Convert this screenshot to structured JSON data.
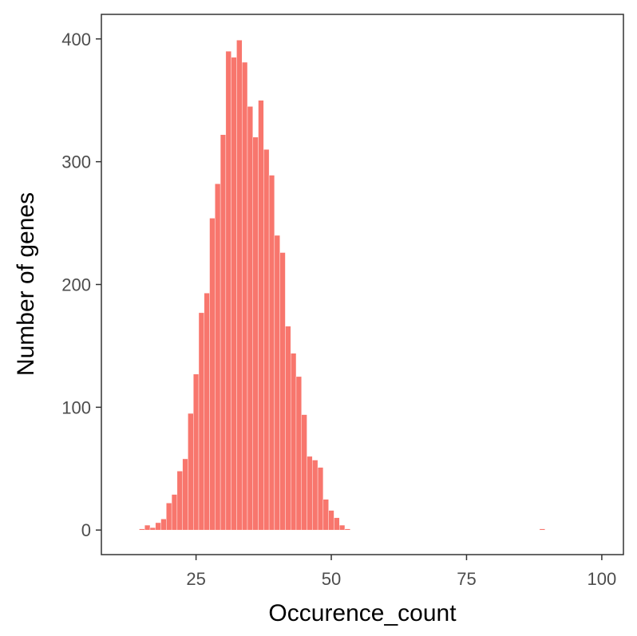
{
  "chart_data": {
    "type": "bar",
    "subtype": "histogram",
    "xlabel": "Occurence_count",
    "ylabel": "Number of genes",
    "xlim": [
      7.5,
      104
    ],
    "ylim": [
      -20,
      420
    ],
    "x_ticks": [
      25,
      50,
      75,
      100
    ],
    "y_ticks": [
      0,
      100,
      200,
      300,
      400
    ],
    "bin_width": 1,
    "bar_color": "#F8766D",
    "grid": false,
    "legend": "none",
    "bins": [
      {
        "x": 15,
        "count": 1
      },
      {
        "x": 16,
        "count": 4
      },
      {
        "x": 17,
        "count": 2
      },
      {
        "x": 18,
        "count": 6
      },
      {
        "x": 19,
        "count": 9
      },
      {
        "x": 20,
        "count": 22
      },
      {
        "x": 21,
        "count": 29
      },
      {
        "x": 22,
        "count": 48
      },
      {
        "x": 23,
        "count": 58
      },
      {
        "x": 24,
        "count": 95
      },
      {
        "x": 25,
        "count": 127
      },
      {
        "x": 26,
        "count": 177
      },
      {
        "x": 27,
        "count": 193
      },
      {
        "x": 28,
        "count": 254
      },
      {
        "x": 29,
        "count": 282
      },
      {
        "x": 30,
        "count": 322
      },
      {
        "x": 31,
        "count": 390
      },
      {
        "x": 32,
        "count": 385
      },
      {
        "x": 33,
        "count": 399
      },
      {
        "x": 34,
        "count": 381
      },
      {
        "x": 35,
        "count": 345
      },
      {
        "x": 36,
        "count": 320
      },
      {
        "x": 37,
        "count": 350
      },
      {
        "x": 38,
        "count": 310
      },
      {
        "x": 39,
        "count": 289
      },
      {
        "x": 40,
        "count": 240
      },
      {
        "x": 41,
        "count": 226
      },
      {
        "x": 42,
        "count": 166
      },
      {
        "x": 43,
        "count": 144
      },
      {
        "x": 44,
        "count": 125
      },
      {
        "x": 45,
        "count": 94
      },
      {
        "x": 46,
        "count": 60
      },
      {
        "x": 47,
        "count": 57
      },
      {
        "x": 48,
        "count": 51
      },
      {
        "x": 49,
        "count": 25
      },
      {
        "x": 50,
        "count": 16
      },
      {
        "x": 51,
        "count": 10
      },
      {
        "x": 52,
        "count": 4
      },
      {
        "x": 53,
        "count": 1
      },
      {
        "x": 89,
        "count": 1
      }
    ]
  }
}
